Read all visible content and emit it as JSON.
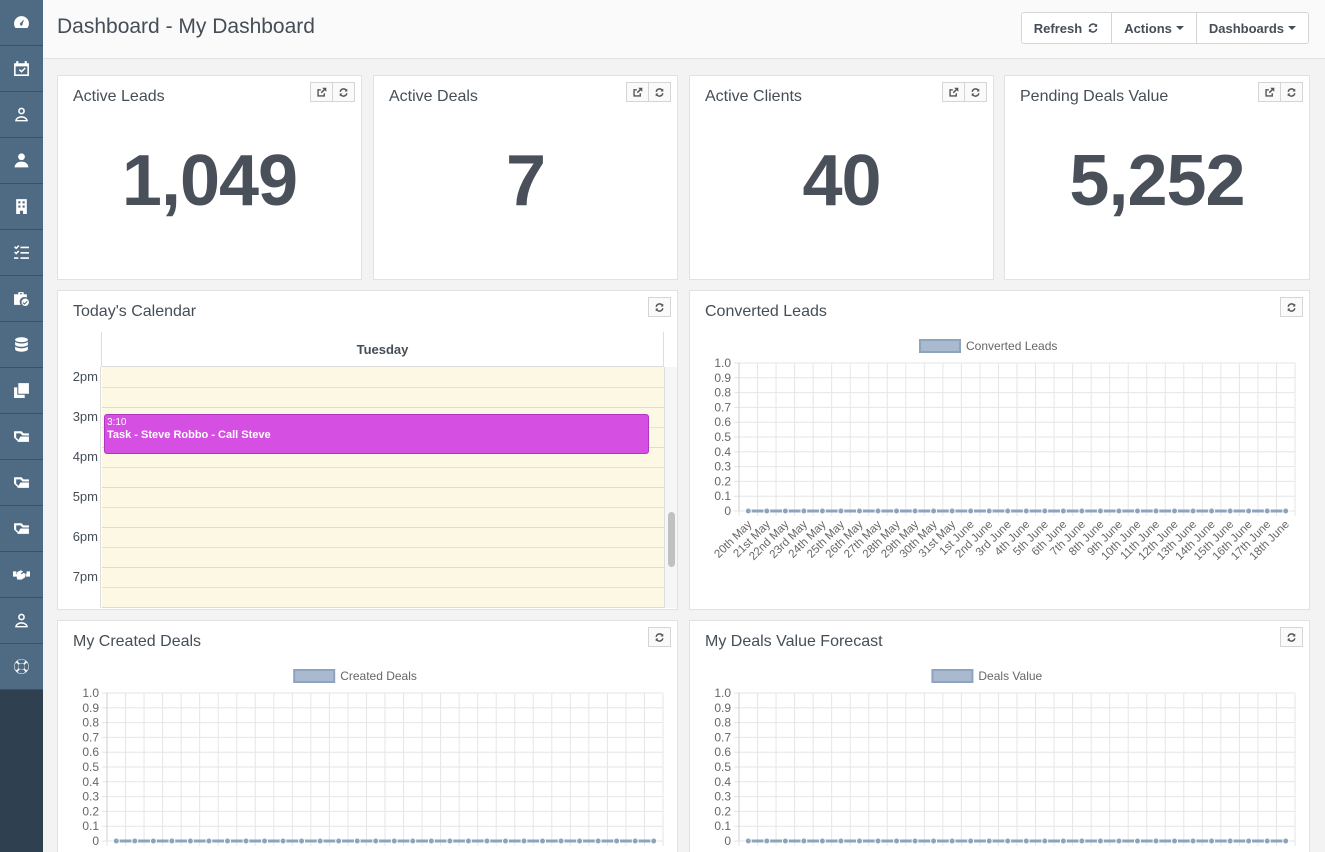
{
  "page": {
    "title": "Dashboard - My Dashboard"
  },
  "toolbar": {
    "refresh_label": "Refresh",
    "actions_label": "Actions",
    "dashboards_label": "Dashboards"
  },
  "sidebar": {
    "items": [
      {
        "icon": "dashboard-icon"
      },
      {
        "icon": "calendar-check-icon"
      },
      {
        "icon": "user-outline-icon"
      },
      {
        "icon": "user-icon"
      },
      {
        "icon": "building-icon"
      },
      {
        "icon": "task-list-icon"
      },
      {
        "icon": "case-check-icon"
      },
      {
        "icon": "database-icon"
      },
      {
        "icon": "copy-icon"
      },
      {
        "icon": "deal-icon"
      },
      {
        "icon": "deal-alt-icon"
      },
      {
        "icon": "deal-outline-icon"
      },
      {
        "icon": "handshake-icon"
      },
      {
        "icon": "user-profile-icon"
      },
      {
        "icon": "lifebuoy-icon"
      }
    ]
  },
  "stats": [
    {
      "title": "Active Leads",
      "value": "1,049"
    },
    {
      "title": "Active Deals",
      "value": "7"
    },
    {
      "title": "Active Clients",
      "value": "40"
    },
    {
      "title": "Pending Deals Value",
      "value": "5,252"
    }
  ],
  "calendar": {
    "title": "Today's Calendar",
    "day_label": "Tuesday",
    "times": [
      "2pm",
      "3pm",
      "4pm",
      "5pm",
      "6pm",
      "7pm"
    ],
    "event": {
      "time": "3:10",
      "title": "Task - Steve Robbo - Call Steve",
      "color": "#d54fe3"
    }
  },
  "charts": {
    "converted": {
      "title": "Converted Leads"
    },
    "created": {
      "title": "My Created Deals"
    },
    "forecast": {
      "title": "My Deals Value Forecast"
    }
  },
  "chart_data": [
    {
      "type": "line",
      "title": "Converted Leads",
      "x": [
        "20th May",
        "21st May",
        "22nd May",
        "23rd May",
        "24th May",
        "25th May",
        "26th May",
        "27th May",
        "28th May",
        "29th May",
        "30th May",
        "31st May",
        "1st June",
        "2nd June",
        "3rd June",
        "4th June",
        "5th June",
        "6th June",
        "7th June",
        "8th June",
        "9th June",
        "10th June",
        "11th June",
        "12th June",
        "13th June",
        "14th June",
        "15th June",
        "16th June",
        "17th June",
        "18th June"
      ],
      "series": [
        {
          "name": "Converted Leads",
          "values": [
            0,
            0,
            0,
            0,
            0,
            0,
            0,
            0,
            0,
            0,
            0,
            0,
            0,
            0,
            0,
            0,
            0,
            0,
            0,
            0,
            0,
            0,
            0,
            0,
            0,
            0,
            0,
            0,
            0,
            0
          ]
        }
      ],
      "yticks": [
        "1.0",
        "0.9",
        "0.8",
        "0.7",
        "0.6",
        "0.5",
        "0.4",
        "0.3",
        "0.2",
        "0.1",
        "0"
      ],
      "ylim": [
        0,
        1
      ],
      "legend": "top",
      "grid": true,
      "colors": {
        "line": "#8ea3bd",
        "fill": "#a9b9cf"
      }
    },
    {
      "type": "line",
      "title": "My Created Deals",
      "x": [
        "",
        "",
        "",
        "",
        "",
        "",
        "",
        "",
        "",
        "",
        "",
        "",
        "",
        "",
        "",
        "",
        "",
        "",
        "",
        "",
        "",
        "",
        "",
        "",
        "",
        "",
        "",
        "",
        "",
        ""
      ],
      "series": [
        {
          "name": "Created Deals",
          "values": [
            0,
            0,
            0,
            0,
            0,
            0,
            0,
            0,
            0,
            0,
            0,
            0,
            0,
            0,
            0,
            0,
            0,
            0,
            0,
            0,
            0,
            0,
            0,
            0,
            0,
            0,
            0,
            0,
            0,
            0
          ]
        }
      ],
      "yticks": [
        "1.0",
        "0.9",
        "0.8",
        "0.7",
        "0.6",
        "0.5",
        "0.4",
        "0.3",
        "0.2",
        "0.1",
        "0"
      ],
      "ylim": [
        0,
        1
      ],
      "legend": "top",
      "grid": true,
      "colors": {
        "line": "#8ea3bd",
        "fill": "#a9b9cf"
      }
    },
    {
      "type": "line",
      "title": "My Deals Value Forecast",
      "x": [
        "",
        "",
        "",
        "",
        "",
        "",
        "",
        "",
        "",
        "",
        "",
        "",
        "",
        "",
        "",
        "",
        "",
        "",
        "",
        "",
        "",
        "",
        "",
        "",
        "",
        "",
        "",
        "",
        "",
        ""
      ],
      "series": [
        {
          "name": "Deals Value",
          "values": [
            0,
            0,
            0,
            0,
            0,
            0,
            0,
            0,
            0,
            0,
            0,
            0,
            0,
            0,
            0,
            0,
            0,
            0,
            0,
            0,
            0,
            0,
            0,
            0,
            0,
            0,
            0,
            0,
            0,
            0
          ]
        }
      ],
      "yticks": [
        "1.0",
        "0.9",
        "0.8",
        "0.7",
        "0.6",
        "0.5",
        "0.4",
        "0.3",
        "0.2",
        "0.1",
        "0"
      ],
      "ylim": [
        0,
        1
      ],
      "legend": "top",
      "grid": true,
      "colors": {
        "line": "#8ea3bd",
        "fill": "#a9b9cf"
      }
    }
  ]
}
